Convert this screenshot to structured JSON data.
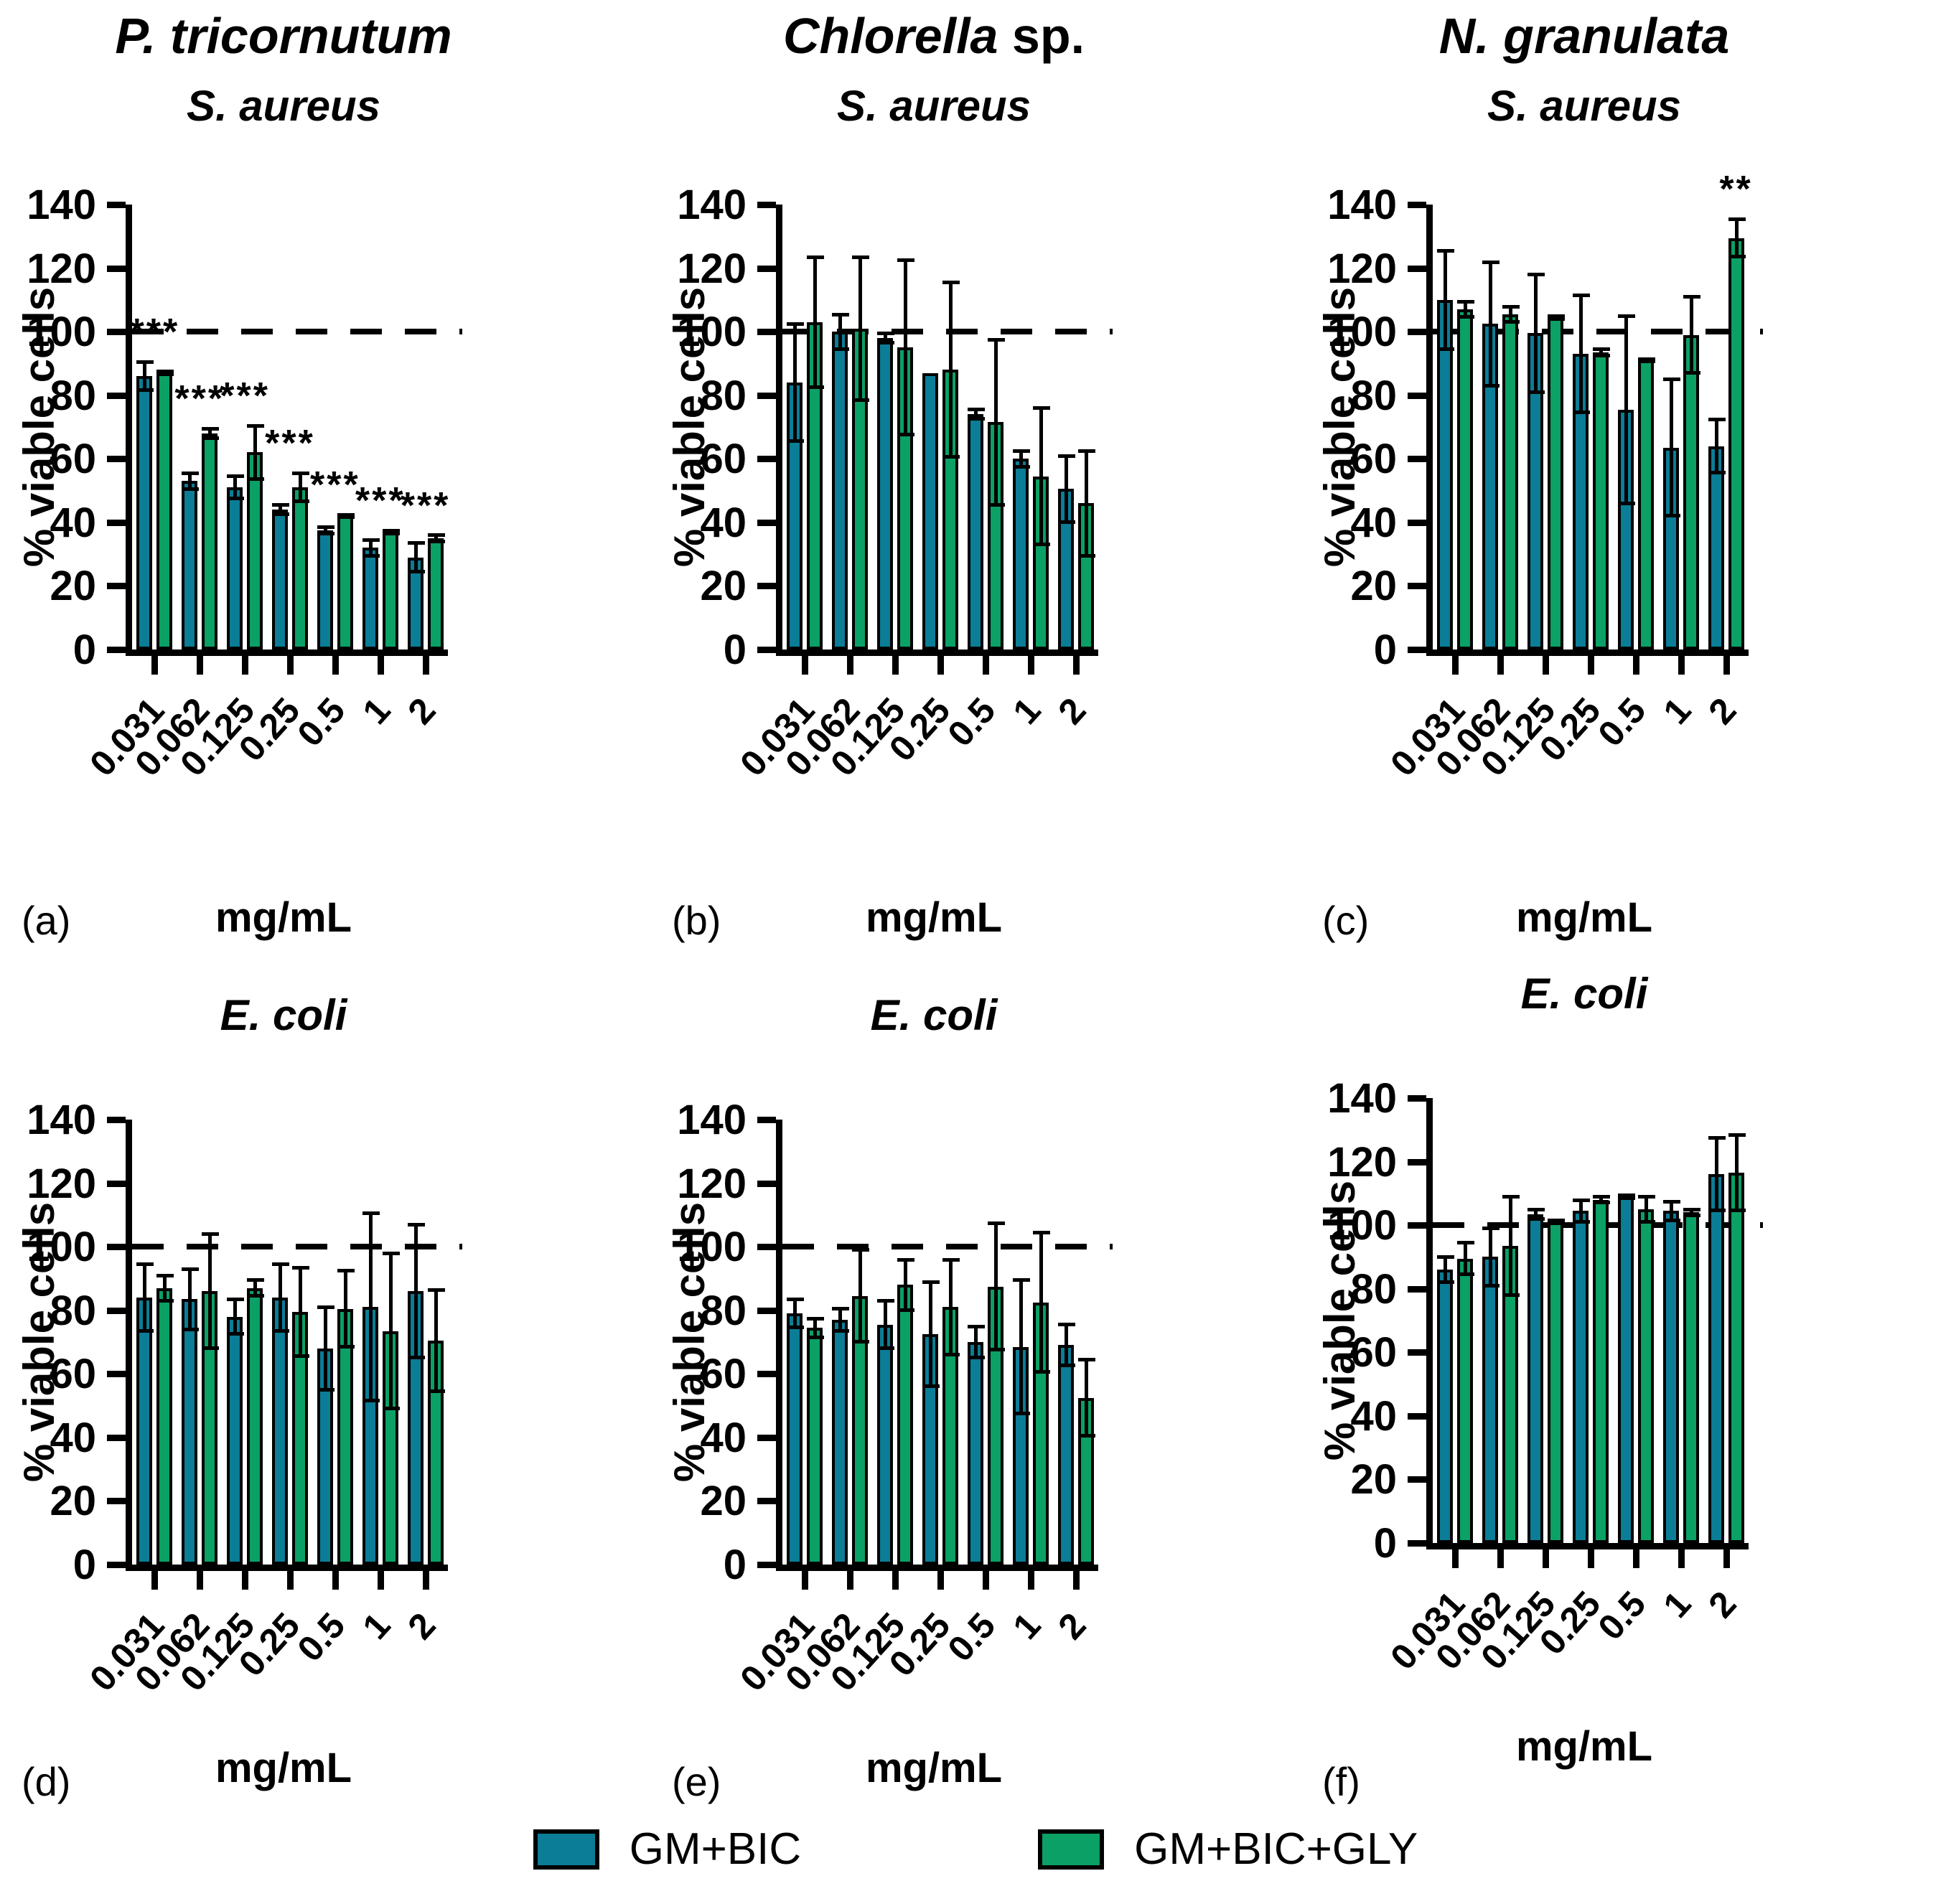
{
  "colors": {
    "gm_bic": "#0b7d96",
    "gm_bic_gly": "#0ba065",
    "axis": "#000000",
    "background": "#ffffff"
  },
  "legend": {
    "items": [
      {
        "label": "GM+BIC",
        "color": "#0b7d96"
      },
      {
        "label": "GM+BIC+GLY",
        "color": "#0ba065"
      }
    ]
  },
  "chart_data": [
    {
      "id": "a",
      "panel_label": "(a)",
      "type": "bar",
      "title_italic": "P. tricornutum",
      "title_roman": "",
      "subtitle": "S. aureus",
      "xlabel": "mg/mL",
      "ylabel": "% viable cells",
      "ylim": [
        0,
        140
      ],
      "yticks": [
        0,
        20,
        40,
        60,
        80,
        100,
        120,
        140
      ],
      "reference_line": 100,
      "categories": [
        "0.031",
        "0.062",
        "0.125",
        "0.25",
        "0.5",
        "1",
        "2"
      ],
      "series": [
        {
          "name": "GM+BIC",
          "color": "#0b7d96",
          "values": [
            86,
            53,
            51,
            44,
            37.5,
            32,
            29
          ],
          "errors": [
            5,
            3,
            4,
            2,
            1.5,
            3,
            5
          ]
        },
        {
          "name": "GM+BIC+GLY",
          "color": "#0ba065",
          "values": [
            87,
            68,
            62,
            51,
            42,
            37,
            35
          ],
          "errors": [
            1,
            2,
            9,
            5,
            1,
            1,
            1.5
          ]
        }
      ],
      "annotations": [
        {
          "category": "0.031",
          "text": "***",
          "anchor": "pair"
        },
        {
          "category": "0.062",
          "text": "***",
          "anchor": "pair"
        },
        {
          "category": "0.125",
          "text": "***",
          "anchor": "pair"
        },
        {
          "category": "0.25",
          "text": "***",
          "anchor": "pair"
        },
        {
          "category": "0.5",
          "text": "***",
          "anchor": "pair"
        },
        {
          "category": "1",
          "text": "***",
          "anchor": "pair"
        },
        {
          "category": "2",
          "text": "***",
          "anchor": "pair"
        }
      ]
    },
    {
      "id": "b",
      "panel_label": "(b)",
      "type": "bar",
      "title_italic": "Chlorella",
      "title_roman": " sp.",
      "subtitle": "S. aureus",
      "xlabel": "mg/mL",
      "ylabel": "% viable cells",
      "ylim": [
        0,
        140
      ],
      "yticks": [
        0,
        20,
        40,
        60,
        80,
        100,
        120,
        140
      ],
      "reference_line": 100,
      "categories": [
        "0.031",
        "0.062",
        "0.125",
        "0.25",
        "0.5",
        "1",
        "2"
      ],
      "series": [
        {
          "name": "GM+BIC",
          "color": "#0b7d96",
          "values": [
            84,
            100,
            98,
            87,
            74,
            60,
            50.5
          ],
          "errors": [
            19,
            6,
            2,
            0,
            2,
            3,
            11
          ]
        },
        {
          "name": "GM+BIC+GLY",
          "color": "#0ba065",
          "values": [
            103,
            101,
            95,
            88,
            71.5,
            54.5,
            46
          ],
          "errors": [
            21,
            23,
            28,
            28,
            26.5,
            22,
            17
          ]
        }
      ],
      "annotations": []
    },
    {
      "id": "c",
      "panel_label": "(c)",
      "type": "bar",
      "title_italic": "N. granulata",
      "title_roman": "",
      "subtitle": "S. aureus",
      "xlabel": "mg/mL",
      "ylabel": "% viable cells",
      "ylim": [
        0,
        140
      ],
      "yticks": [
        0,
        20,
        40,
        60,
        80,
        100,
        120,
        140
      ],
      "reference_line": 100,
      "categories": [
        "0.031",
        "0.062",
        "0.125",
        "0.25",
        "0.5",
        "1",
        "2"
      ],
      "series": [
        {
          "name": "GM+BIC",
          "color": "#0b7d96",
          "values": [
            110,
            102.5,
            99.5,
            93,
            75.5,
            63.5,
            64
          ],
          "errors": [
            16,
            20,
            19,
            19,
            30,
            22,
            9
          ]
        },
        {
          "name": "GM+BIC+GLY",
          "color": "#0ba065",
          "values": [
            107,
            105.5,
            104.5,
            93.5,
            91,
            99,
            129.5
          ],
          "errors": [
            3,
            3,
            1,
            1.5,
            1,
            12.5,
            6.5
          ]
        }
      ],
      "annotations": [
        {
          "category": "2",
          "text": "**",
          "anchor": "series2"
        }
      ]
    },
    {
      "id": "d",
      "panel_label": "(d)",
      "type": "bar",
      "title_italic": "",
      "title_roman": "",
      "subtitle": "E. coli",
      "xlabel": "mg/mL",
      "ylabel": "% viable cells",
      "ylim": [
        0,
        140
      ],
      "yticks": [
        0,
        20,
        40,
        60,
        80,
        100,
        120,
        140
      ],
      "reference_line": 100,
      "categories": [
        "0.031",
        "0.062",
        "0.125",
        "0.25",
        "0.5",
        "1",
        "2"
      ],
      "series": [
        {
          "name": "GM+BIC",
          "color": "#0b7d96",
          "values": [
            84,
            83.5,
            78,
            84,
            68,
            81,
            86
          ],
          "errors": [
            11,
            10,
            6,
            11,
            13.5,
            30,
            21.5
          ]
        },
        {
          "name": "GM+BIC+GLY",
          "color": "#0ba065",
          "values": [
            87,
            86,
            87,
            79.5,
            80.5,
            73.5,
            70.5
          ],
          "errors": [
            4.5,
            18.5,
            3,
            14.5,
            12.5,
            25,
            16.5
          ]
        }
      ],
      "annotations": []
    },
    {
      "id": "e",
      "panel_label": "(e)",
      "type": "bar",
      "title_italic": "",
      "title_roman": "",
      "subtitle": "E. coli",
      "xlabel": "mg/mL",
      "ylabel": "% viable cells",
      "ylim": [
        0,
        140
      ],
      "yticks": [
        0,
        20,
        40,
        60,
        80,
        100,
        120,
        140
      ],
      "reference_line": 100,
      "categories": [
        "0.031",
        "0.062",
        "0.125",
        "0.25",
        "0.5",
        "1",
        "2"
      ],
      "series": [
        {
          "name": "GM+BIC",
          "color": "#0b7d96",
          "values": [
            79,
            77,
            75.5,
            72.5,
            70,
            68.5,
            69
          ],
          "errors": [
            5,
            4,
            8,
            17,
            5.5,
            21.5,
            7
          ]
        },
        {
          "name": "GM+BIC+GLY",
          "color": "#0ba065",
          "values": [
            74.5,
            84.5,
            88,
            81,
            87.5,
            82.5,
            52.5
          ],
          "errors": [
            3.5,
            15,
            8.5,
            15.5,
            20.5,
            22.5,
            12.5
          ]
        }
      ],
      "annotations": []
    },
    {
      "id": "f",
      "panel_label": "(f)",
      "type": "bar",
      "title_italic": "",
      "title_roman": "",
      "subtitle": "E. coli",
      "xlabel": "mg/mL",
      "ylabel": "% viable cells",
      "ylim": [
        0,
        140
      ],
      "yticks": [
        0,
        20,
        40,
        60,
        80,
        100,
        120,
        140
      ],
      "reference_line": 100,
      "categories": [
        "0.031",
        "0.062",
        "0.125",
        "0.25",
        "0.5",
        "1",
        "2"
      ],
      "series": [
        {
          "name": "GM+BIC",
          "color": "#0b7d96",
          "values": [
            86,
            90,
            103.5,
            104.5,
            109,
            104.5,
            116
          ],
          "errors": [
            4.5,
            9.5,
            2,
            4,
            1,
            3.5,
            12
          ]
        },
        {
          "name": "GM+BIC+GLY",
          "color": "#0ba065",
          "values": [
            89.5,
            93.5,
            101,
            108,
            105,
            104,
            116.5
          ],
          "errors": [
            5.5,
            16,
            1,
            1.5,
            4.5,
            1.5,
            12.5
          ]
        }
      ],
      "annotations": []
    }
  ]
}
